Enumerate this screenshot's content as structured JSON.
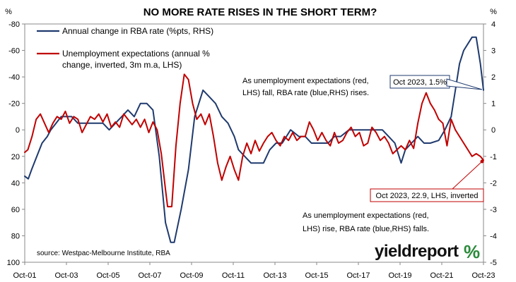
{
  "chart_data": {
    "type": "line",
    "title": "NO MORE RATE RISES IN THE SHORT TERM?",
    "lhs_unit": "%",
    "rhs_unit": "%",
    "x_tick_labels": [
      "Oct-01",
      "Oct-03",
      "Oct-05",
      "Oct-07",
      "Oct-09",
      "Oct-11",
      "Oct-13",
      "Oct-15",
      "Oct-17",
      "Oct-19",
      "Oct-21",
      "Oct-23"
    ],
    "x_range": [
      2001.75,
      2023.75
    ],
    "ylim_left": [
      -80,
      100
    ],
    "ylim_left_inverted": true,
    "ylim_left_ticks": [
      "-80",
      "-60",
      "-40",
      "-20",
      "0",
      "20",
      "40",
      "60",
      "80",
      "100"
    ],
    "ylim_right": [
      -5,
      4
    ],
    "ylim_right_ticks": [
      "4",
      "3",
      "2",
      "1",
      "0",
      "-1",
      "-2",
      "-3",
      "-4",
      "-5"
    ],
    "legend": [
      {
        "label": "Annual change in RBA rate (%pts, RHS)",
        "color": "#1f3a6e"
      },
      {
        "label": "Unemployment expectations (annual % change, inverted, 3m m.a, LHS)",
        "color": "#c00000"
      }
    ],
    "legend_lines": {
      "rba": [
        "Annual change in RBA rate (%pts, RHS)"
      ],
      "unemp": [
        "Unemployment expectations (annual %",
        "change, inverted, 3m m.a, LHS)"
      ]
    },
    "series": [
      {
        "name": "Annual change in RBA rate (%pts, RHS)",
        "axis": "right",
        "color": "#1f3a6e",
        "x": [
          2001.75,
          2001.92,
          2002.08,
          2002.33,
          2002.58,
          2002.83,
          2003.0,
          2003.25,
          2003.5,
          2003.75,
          2004.0,
          2004.3,
          2004.6,
          2004.9,
          2005.2,
          2005.5,
          2005.8,
          2006.1,
          2006.4,
          2006.7,
          2007.0,
          2007.3,
          2007.6,
          2007.9,
          2008.2,
          2008.5,
          2008.75,
          2008.92,
          2009.25,
          2009.6,
          2009.9,
          2010.3,
          2010.6,
          2010.9,
          2011.2,
          2011.5,
          2011.8,
          2012.0,
          2012.3,
          2012.6,
          2012.9,
          2013.2,
          2013.5,
          2013.8,
          2014.1,
          2014.5,
          2014.9,
          2015.2,
          2015.5,
          2015.9,
          2016.3,
          2016.6,
          2016.9,
          2017.3,
          2017.7,
          2018.1,
          2018.5,
          2018.9,
          2019.2,
          2019.5,
          2019.8,
          2020.0,
          2020.3,
          2020.6,
          2020.9,
          2021.2,
          2021.6,
          2021.9,
          2022.2,
          2022.4,
          2022.6,
          2022.8,
          2023.0,
          2023.2,
          2023.4,
          2023.6,
          2023.75
        ],
        "values": [
          -1.75,
          -1.85,
          -1.5,
          -1.0,
          -0.5,
          -0.25,
          0.0,
          0.25,
          0.5,
          0.5,
          0.5,
          0.25,
          0.25,
          0.25,
          0.25,
          0.25,
          0.0,
          0.25,
          0.5,
          0.75,
          0.5,
          1.0,
          1.0,
          0.75,
          -1.0,
          -3.5,
          -4.25,
          -4.25,
          -3.0,
          -1.5,
          0.5,
          1.5,
          1.25,
          1.0,
          0.5,
          0.25,
          -0.25,
          -0.75,
          -1.0,
          -1.25,
          -1.25,
          -1.25,
          -0.75,
          -0.5,
          -0.5,
          0.0,
          -0.25,
          -0.25,
          -0.5,
          -0.5,
          -0.5,
          -0.25,
          -0.25,
          0.0,
          0.0,
          0.0,
          0.0,
          0.0,
          -0.25,
          -0.5,
          -1.25,
          -0.75,
          -0.5,
          -0.25,
          -0.5,
          -0.5,
          -0.4,
          0.0,
          0.5,
          1.5,
          2.5,
          3.0,
          3.25,
          3.5,
          3.5,
          2.5,
          1.5
        ]
      },
      {
        "name": "Unemployment expectations (annual % change, inverted, 3m m.a, LHS)",
        "axis": "left",
        "color": "#c00000",
        "x": [
          2001.75,
          2001.9,
          2002.1,
          2002.3,
          2002.5,
          2002.7,
          2002.9,
          2003.1,
          2003.3,
          2003.5,
          2003.7,
          2003.9,
          2004.1,
          2004.3,
          2004.5,
          2004.7,
          2004.9,
          2005.1,
          2005.3,
          2005.5,
          2005.7,
          2005.9,
          2006.1,
          2006.3,
          2006.5,
          2006.7,
          2006.9,
          2007.1,
          2007.3,
          2007.5,
          2007.7,
          2007.9,
          2008.1,
          2008.3,
          2008.5,
          2008.6,
          2008.8,
          2009.0,
          2009.2,
          2009.4,
          2009.6,
          2009.8,
          2010.0,
          2010.2,
          2010.4,
          2010.6,
          2010.8,
          2011.0,
          2011.2,
          2011.4,
          2011.6,
          2011.8,
          2012.0,
          2012.2,
          2012.4,
          2012.6,
          2012.8,
          2013.0,
          2013.2,
          2013.4,
          2013.6,
          2013.8,
          2014.0,
          2014.2,
          2014.4,
          2014.6,
          2014.8,
          2015.0,
          2015.2,
          2015.4,
          2015.6,
          2015.8,
          2016.0,
          2016.2,
          2016.4,
          2016.6,
          2016.8,
          2017.0,
          2017.2,
          2017.4,
          2017.6,
          2017.8,
          2018.0,
          2018.2,
          2018.4,
          2018.6,
          2018.8,
          2019.0,
          2019.2,
          2019.4,
          2019.6,
          2019.8,
          2020.0,
          2020.2,
          2020.4,
          2020.6,
          2020.8,
          2021.0,
          2021.2,
          2021.4,
          2021.6,
          2021.8,
          2022.0,
          2022.2,
          2022.4,
          2022.6,
          2022.8,
          2023.0,
          2023.2,
          2023.4,
          2023.6,
          2023.75
        ],
        "values": [
          17,
          15,
          5,
          -8,
          -12,
          -5,
          2,
          -5,
          -10,
          -8,
          -14,
          -5,
          -10,
          -8,
          2,
          -4,
          -10,
          -8,
          -12,
          -6,
          -12,
          -2,
          -6,
          -2,
          -12,
          -8,
          -4,
          -8,
          -2,
          -8,
          2,
          -6,
          0,
          18,
          45,
          58,
          58,
          12,
          -20,
          -42,
          -38,
          -20,
          -8,
          -12,
          -4,
          -12,
          5,
          25,
          38,
          28,
          20,
          30,
          38,
          20,
          10,
          18,
          8,
          16,
          10,
          5,
          2,
          8,
          12,
          5,
          8,
          2,
          8,
          5,
          5,
          -6,
          0,
          8,
          2,
          8,
          12,
          2,
          10,
          8,
          2,
          -2,
          5,
          2,
          12,
          10,
          -2,
          2,
          8,
          5,
          10,
          18,
          15,
          12,
          15,
          8,
          14,
          -5,
          -20,
          -28,
          -20,
          -15,
          -8,
          -5,
          12,
          -8,
          0,
          5,
          10,
          15,
          20,
          18,
          20,
          22.9
        ]
      }
    ],
    "annotations": {
      "rises": [
        "As unemployment expectations (red,",
        "LHS) fall, RBA rate (blue,RHS) rises."
      ],
      "falls": [
        "As unemployment expectations (red,",
        "LHS) rise, RBA rate (blue,RHS) falls."
      ],
      "callout_rba": "Oct 2023, 1.5%",
      "callout_unemp": "Oct 2023, 22.9, LHS, inverted",
      "source": "source: Westpac-Melbourne Institute, RBA"
    },
    "grid": false,
    "legend_placement": "top-left"
  },
  "brand": {
    "name": "yieldreport",
    "symbol": "%",
    "colors": {
      "text": "#111111",
      "accent": "#2a8a3a"
    }
  }
}
